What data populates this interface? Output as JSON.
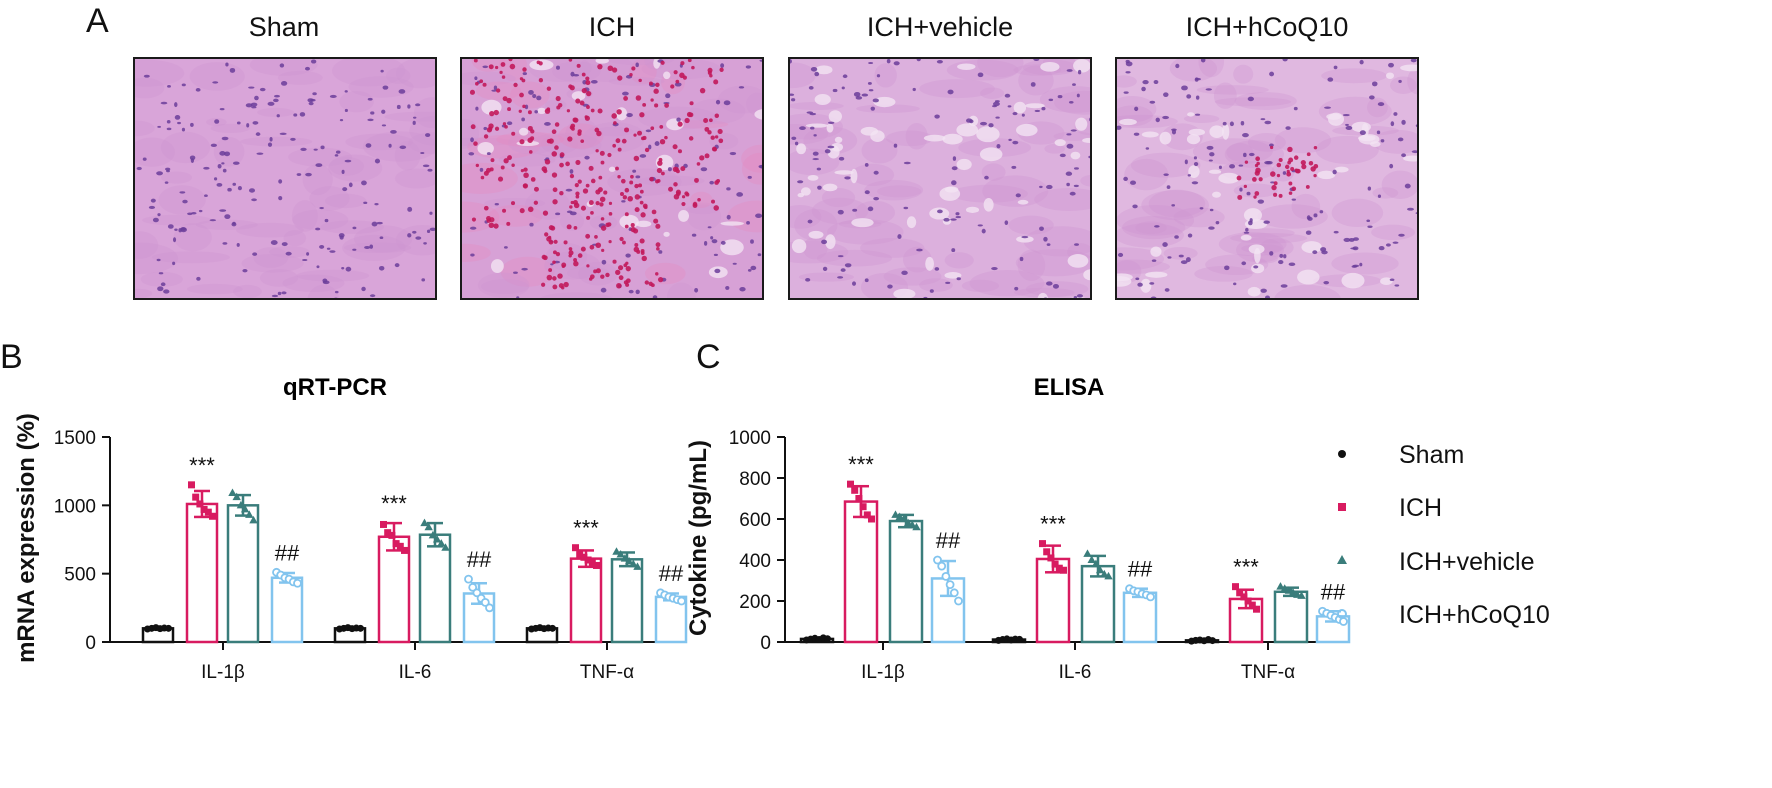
{
  "panels": {
    "a": "A",
    "b": "B",
    "c": "C"
  },
  "histology": {
    "labels": [
      "Sham",
      "ICH",
      "ICH+vehicle",
      "ICH+hCoQ10"
    ]
  },
  "groups": [
    {
      "name": "Sham",
      "color": "#111111",
      "marker": "circle-filled"
    },
    {
      "name": "ICH",
      "color": "#d81b60",
      "marker": "square-filled"
    },
    {
      "name": "ICH+vehicle",
      "color": "#3a7d7b",
      "marker": "triangle-filled"
    },
    {
      "name": "ICH+hCoQ10",
      "color": "#82c4ee",
      "marker": "circle-open"
    }
  ],
  "chart_data": [
    {
      "type": "bar",
      "title": "qRT-PCR",
      "ylabel": "mRNA expression (%)",
      "xlabel": "",
      "ylim": [
        0,
        1500
      ],
      "yticks": [
        0,
        500,
        1000,
        1500
      ],
      "categories": [
        "IL-1β",
        "IL-6",
        "TNF-α"
      ],
      "series": [
        {
          "name": "Sham",
          "values": [
            100,
            100,
            100
          ],
          "sd": [
            8,
            8,
            8
          ],
          "points": [
            [
              95,
              100,
              105,
              98,
              102,
              100
            ],
            [
              95,
              100,
              105,
              98,
              102,
              100
            ],
            [
              95,
              100,
              105,
              98,
              102,
              100
            ]
          ]
        },
        {
          "name": "ICH",
          "values": [
            1010,
            770,
            610
          ],
          "sd": [
            95,
            100,
            60
          ],
          "points": [
            [
              1150,
              1060,
              1010,
              970,
              950,
              920
            ],
            [
              860,
              800,
              780,
              720,
              700,
              670
            ],
            [
              690,
              640,
              620,
              600,
              580,
              560
            ]
          ]
        },
        {
          "name": "ICH+vehicle",
          "values": [
            1000,
            785,
            605
          ],
          "sd": [
            75,
            85,
            50
          ],
          "points": [
            [
              1090,
              1060,
              1000,
              970,
              930,
              890
            ],
            [
              870,
              840,
              780,
              750,
              720,
              690
            ],
            [
              660,
              640,
              610,
              590,
              570,
              550
            ]
          ]
        },
        {
          "name": "ICH+hCoQ10",
          "values": [
            470,
            355,
            330
          ],
          "sd": [
            35,
            75,
            25
          ],
          "points": [
            [
              510,
              490,
              470,
              460,
              440,
              430
            ],
            [
              460,
              400,
              360,
              320,
              290,
              250
            ],
            [
              360,
              345,
              330,
              320,
              310,
              300
            ]
          ]
        }
      ],
      "annotations": [
        {
          "category": "IL-1β",
          "series": "ICH",
          "text": "***"
        },
        {
          "category": "IL-6",
          "series": "ICH",
          "text": "***"
        },
        {
          "category": "TNF-α",
          "series": "ICH",
          "text": "***"
        },
        {
          "category": "IL-1β",
          "series": "ICH+hCoQ10",
          "text": "##"
        },
        {
          "category": "IL-6",
          "series": "ICH+hCoQ10",
          "text": "##"
        },
        {
          "category": "TNF-α",
          "series": "ICH+hCoQ10",
          "text": "##"
        }
      ]
    },
    {
      "type": "bar",
      "title": "ELISA",
      "ylabel": "Cytokine (pg/mL)",
      "xlabel": "",
      "ylim": [
        0,
        1000
      ],
      "yticks": [
        0,
        200,
        400,
        600,
        800,
        1000
      ],
      "categories": [
        "IL-1β",
        "IL-6",
        "TNF-α"
      ],
      "series": [
        {
          "name": "Sham",
          "values": [
            15,
            12,
            8
          ],
          "sd": [
            5,
            5,
            4
          ],
          "points": [
            [
              10,
              14,
              18,
              12,
              20,
              16
            ],
            [
              8,
              12,
              15,
              10,
              14,
              13
            ],
            [
              4,
              8,
              10,
              6,
              12,
              7
            ]
          ]
        },
        {
          "name": "ICH",
          "values": [
            685,
            405,
            210
          ],
          "sd": [
            75,
            65,
            45
          ],
          "points": [
            [
              770,
              740,
              700,
              660,
              620,
              600
            ],
            [
              480,
              440,
              410,
              380,
              360,
              350
            ],
            [
              270,
              240,
              220,
              200,
              180,
              160
            ]
          ]
        },
        {
          "name": "ICH+vehicle",
          "values": [
            590,
            370,
            245
          ],
          "sd": [
            30,
            50,
            20
          ],
          "points": [
            [
              620,
              610,
              600,
              580,
              570,
              560
            ],
            [
              430,
              400,
              380,
              350,
              330,
              320
            ],
            [
              270,
              260,
              250,
              240,
              230,
              225
            ]
          ]
        },
        {
          "name": "ICH+hCoQ10",
          "values": [
            310,
            240,
            125
          ],
          "sd": [
            85,
            20,
            25
          ],
          "points": [
            [
              400,
              370,
              320,
              280,
              240,
              200
            ],
            [
              260,
              250,
              245,
              235,
              230,
              220
            ],
            [
              150,
              140,
              130,
              120,
              110,
              100
            ]
          ]
        }
      ],
      "annotations": [
        {
          "category": "IL-1β",
          "series": "ICH",
          "text": "***"
        },
        {
          "category": "IL-6",
          "series": "ICH",
          "text": "***"
        },
        {
          "category": "TNF-α",
          "series": "ICH",
          "text": "***"
        },
        {
          "category": "IL-1β",
          "series": "ICH+hCoQ10",
          "text": "##"
        },
        {
          "category": "IL-6",
          "series": "ICH+hCoQ10",
          "text": "##"
        },
        {
          "category": "TNF-α",
          "series": "ICH+hCoQ10",
          "text": "##"
        }
      ]
    }
  ]
}
